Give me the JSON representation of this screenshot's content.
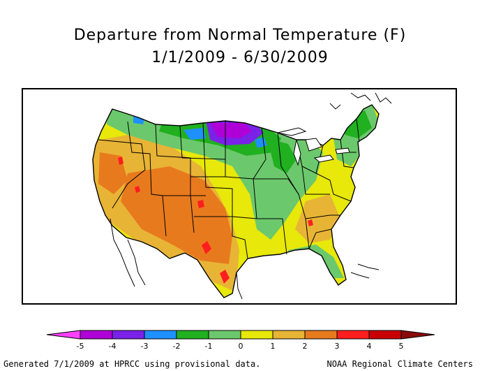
{
  "title": {
    "line1": "Departure from Normal Temperature (F)",
    "line2": "1/1/2009 - 6/30/2009"
  },
  "legend": {
    "ticks": [
      "-5",
      "-4",
      "-3",
      "-2",
      "-1",
      "0",
      "1",
      "2",
      "3",
      "4",
      "5"
    ],
    "below_min_color": "#ff40ff",
    "above_max_color": "#8b0a0a",
    "colors": [
      "#b000d8",
      "#7a22e8",
      "#1e90ff",
      "#20b020",
      "#6cc86c",
      "#e8e80a",
      "#e8b436",
      "#e87a1e",
      "#ff1e1e",
      "#c80000"
    ]
  },
  "footer": {
    "left": "Generated 7/1/2009 at HPRCC using provisional data.",
    "right": "NOAA Regional Climate Centers"
  }
}
